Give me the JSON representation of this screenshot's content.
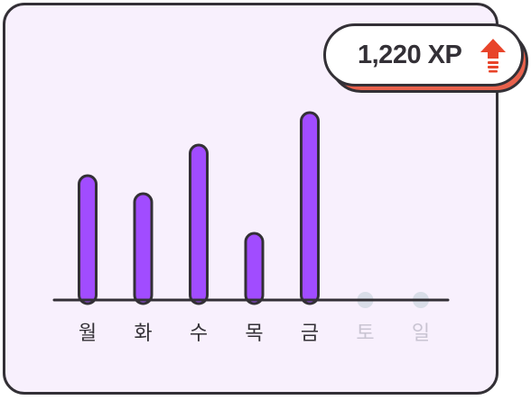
{
  "xp_badge": {
    "label": "1,220 XP",
    "icon": "arrow-up-icon",
    "icon_color": "#e8442a"
  },
  "colors": {
    "bar": "#a14cff",
    "outline": "#333036",
    "card_bg": "#f8f0fd",
    "inactive_dot": "#d9dde8",
    "inactive_label": "#c9c4d2"
  },
  "chart_data": {
    "type": "bar",
    "categories": [
      "월",
      "화",
      "수",
      "목",
      "금",
      "토",
      "일"
    ],
    "values": [
      69,
      59,
      86,
      37,
      104,
      0,
      0
    ],
    "active": [
      true,
      true,
      true,
      true,
      true,
      false,
      false
    ]
  }
}
